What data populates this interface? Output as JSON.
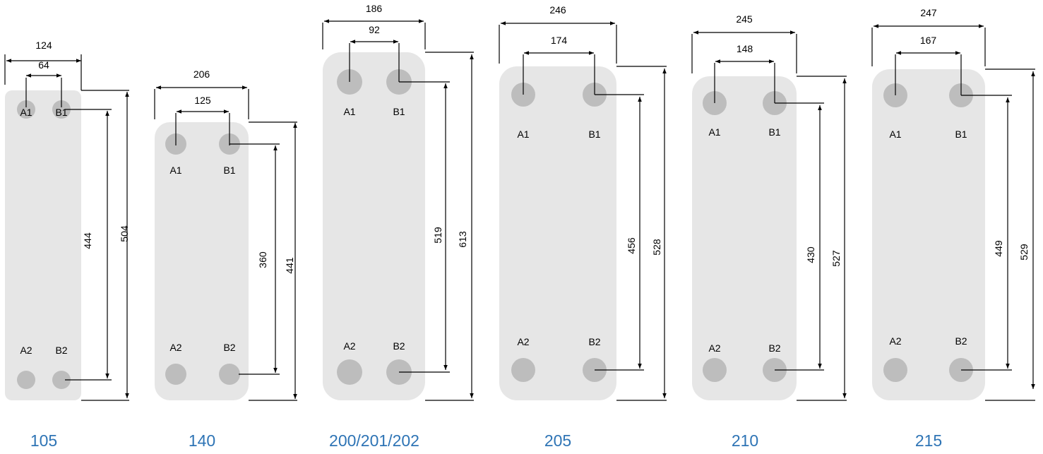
{
  "colors": {
    "plate": "#e6e6e6",
    "port": "#bdbdbd",
    "model_label": "#2e74b5",
    "dimension_line": "#000000"
  },
  "port_labels": {
    "a1": "A1",
    "b1": "B1",
    "a2": "A2",
    "b2": "B2"
  },
  "models": [
    {
      "name": "105",
      "dimensions": {
        "total_width": "124",
        "port_spacing": "64",
        "port_center_height": "444",
        "total_height": "504"
      }
    },
    {
      "name": "140",
      "dimensions": {
        "total_width": "206",
        "port_spacing": "125",
        "port_center_height": "360",
        "total_height": "441"
      }
    },
    {
      "name": "200/201/202",
      "dimensions": {
        "total_width": "186",
        "port_spacing": "92",
        "port_center_height": "519",
        "total_height": "613"
      }
    },
    {
      "name": "205",
      "dimensions": {
        "total_width": "246",
        "port_spacing": "174",
        "port_center_height": "456",
        "total_height": "528"
      }
    },
    {
      "name": "210",
      "dimensions": {
        "total_width": "245",
        "port_spacing": "148",
        "port_center_height": "430",
        "total_height": "527"
      }
    },
    {
      "name": "215",
      "dimensions": {
        "total_width": "247",
        "port_spacing": "167",
        "port_center_height": "449",
        "total_height": "529"
      }
    }
  ]
}
